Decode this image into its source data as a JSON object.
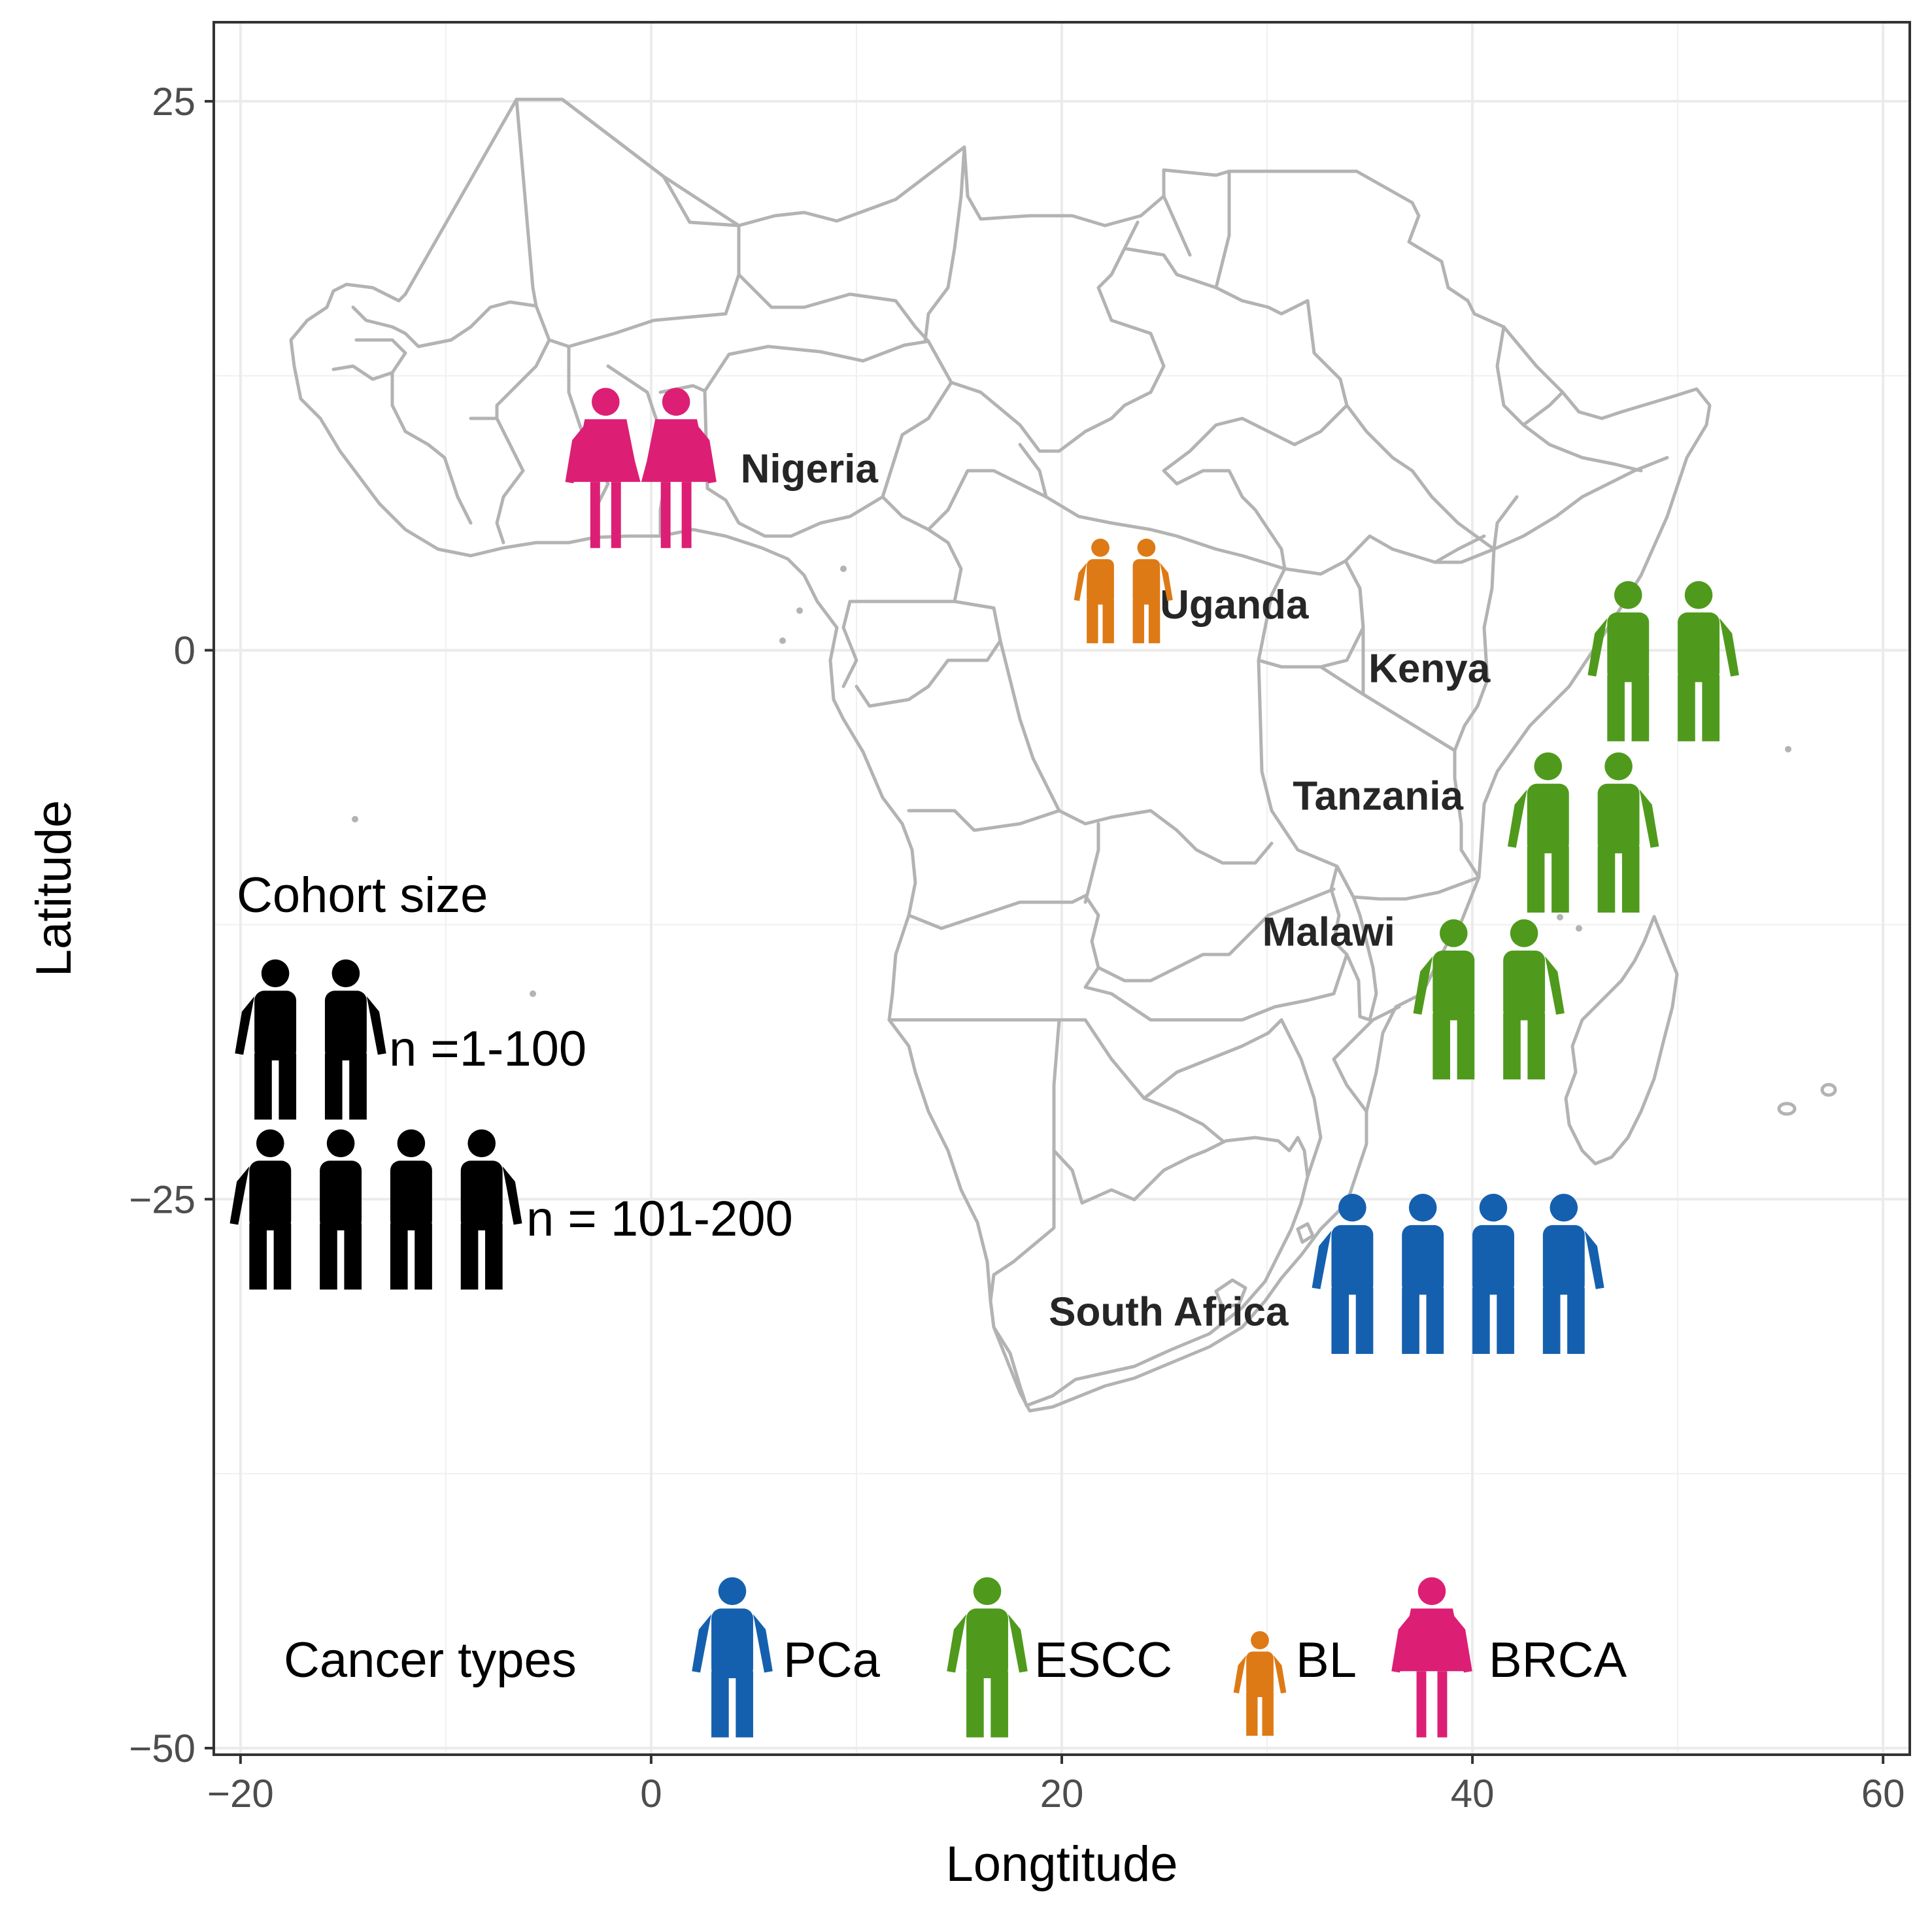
{
  "chart_data": {
    "type": "map",
    "xlabel": "Longtitude",
    "ylabel": "Latitude",
    "xlim": [
      -21.3,
      61.3
    ],
    "ylim": [
      -50.3,
      28.6
    ],
    "x_ticks": [
      {
        "value": -20,
        "label": "−20"
      },
      {
        "value": 0,
        "label": "0"
      },
      {
        "value": 20,
        "label": "20"
      },
      {
        "value": 40,
        "label": "40"
      },
      {
        "value": 60,
        "label": "60"
      }
    ],
    "y_ticks": [
      {
        "value": 25,
        "label": "25"
      },
      {
        "value": 0,
        "label": "0"
      },
      {
        "value": -25,
        "label": "−25"
      },
      {
        "value": -50,
        "label": "−50"
      }
    ],
    "grid": true,
    "highlighted_countries": [
      {
        "name": "Nigeria",
        "label_lon": 7.7,
        "label_lat": 8.3
      },
      {
        "name": "Uganda",
        "label_lon": 28.4,
        "label_lat": 2.1
      },
      {
        "name": "Kenya",
        "label_lon": 37.9,
        "label_lat": -0.8
      },
      {
        "name": "Tanzania",
        "label_lon": 35.4,
        "label_lat": -6.6
      },
      {
        "name": "Malawi",
        "label_lon": 33.0,
        "label_lat": -12.8
      },
      {
        "name": "South Africa",
        "label_lon": 25.2,
        "label_lat": -30.1
      }
    ],
    "cohorts": [
      {
        "country": "Nigeria",
        "cancer": "BRCA",
        "size": "n =1-100",
        "icons": 2,
        "lon": -0.5,
        "lat": 8.3
      },
      {
        "country": "Uganda",
        "cancer": "BL",
        "size": "n =1-100",
        "icons": 2,
        "lon": 23.0,
        "lat": 2.7
      },
      {
        "country": "Kenya",
        "cancer": "ESCC",
        "size": "n =1-100",
        "icons": 2,
        "lon": 49.3,
        "lat": -0.5
      },
      {
        "country": "Tanzania",
        "cancer": "ESCC",
        "size": "n =1-100",
        "icons": 2,
        "lon": 45.4,
        "lat": -8.3
      },
      {
        "country": "Malawi",
        "cancer": "ESCC",
        "size": "n =1-100",
        "icons": 2,
        "lon": 40.8,
        "lat": -15.9
      },
      {
        "country": "South Africa",
        "cancer": "PCa",
        "size": "n = 101-200",
        "icons": 4,
        "lon": 39.3,
        "lat": -28.4
      }
    ],
    "legend_size": {
      "title": "Cohort size",
      "items": [
        {
          "label": "n =1-100",
          "icons": 2
        },
        {
          "label": "n = 101-200",
          "icons": 4
        }
      ]
    },
    "legend_cancer": {
      "title": "Cancer types",
      "items": [
        {
          "label": "PCa",
          "color": "#1560ae",
          "figure": "man"
        },
        {
          "label": "ESCC",
          "color": "#4f9a1c",
          "figure": "man"
        },
        {
          "label": "BL",
          "color": "#dd7a16",
          "figure": "child"
        },
        {
          "label": "BRCA",
          "color": "#dc1f74",
          "figure": "woman"
        }
      ]
    },
    "colors": {
      "PCa": "#1560ae",
      "ESCC": "#4f9a1c",
      "BL": "#dd7a16",
      "BRCA": "#dc1f74",
      "highlight_fill": "#cccccc",
      "border": "#b3b3b3"
    }
  }
}
